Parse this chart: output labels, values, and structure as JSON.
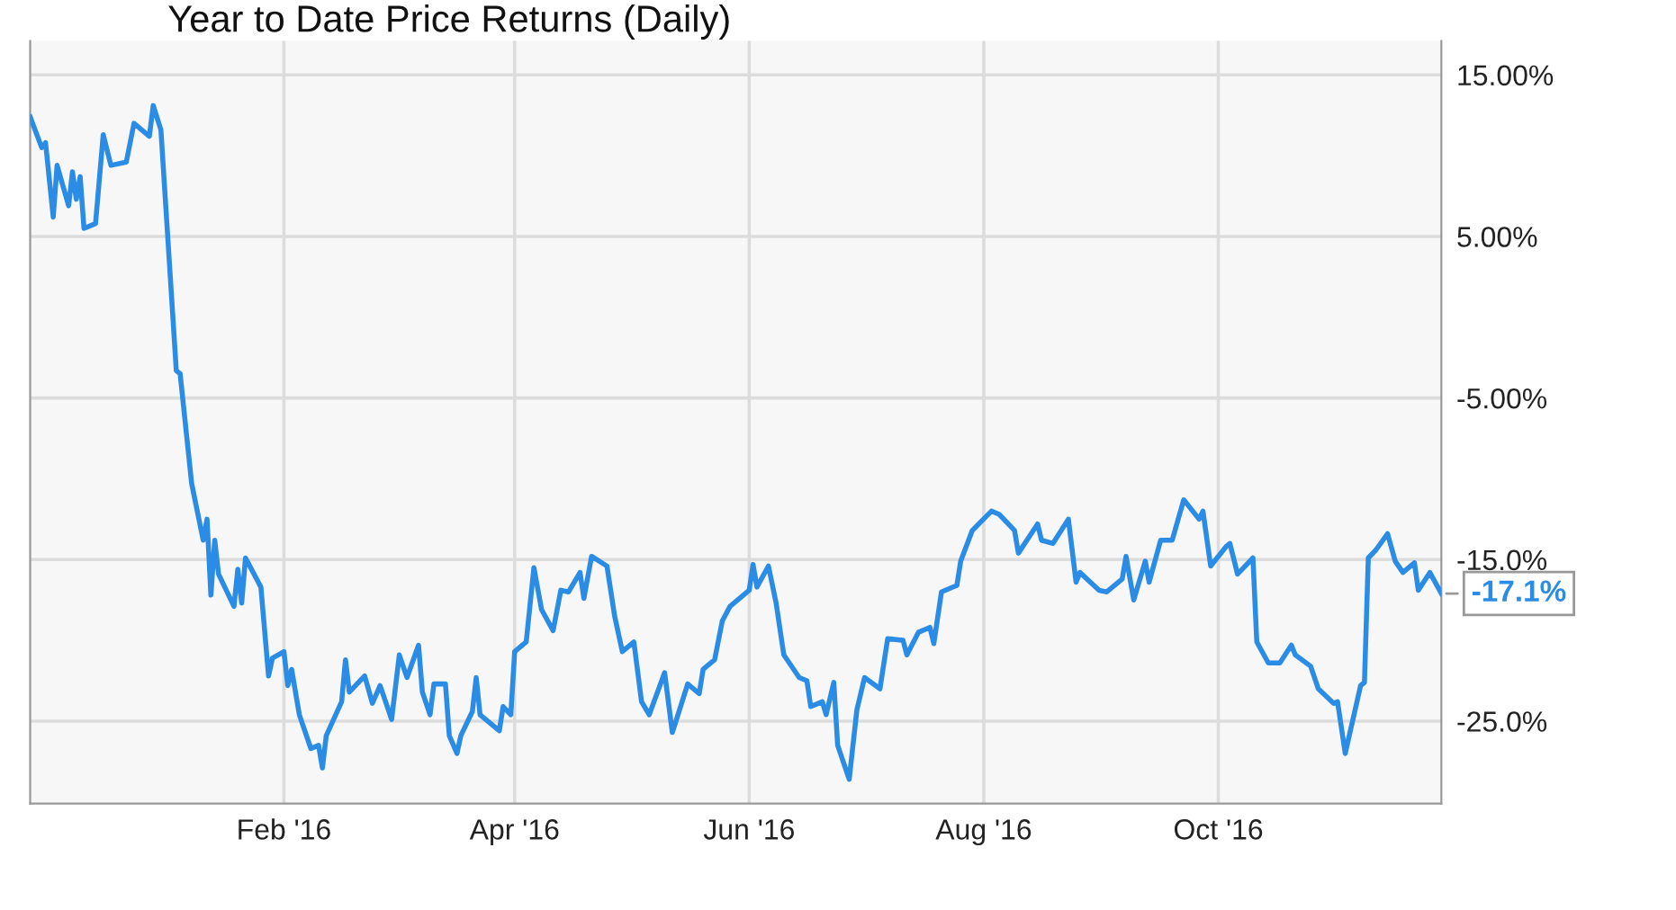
{
  "chart_data": {
    "type": "line",
    "title": "Year to Date Price Returns (Daily)",
    "x": [
      "2015-11-27",
      "2015-11-30",
      "2015-12-01",
      "2015-12-03",
      "2015-12-04",
      "2015-12-07",
      "2015-12-08",
      "2015-12-09",
      "2015-12-10",
      "2015-12-11",
      "2015-12-14",
      "2015-12-16",
      "2015-12-18",
      "2015-12-22",
      "2015-12-24",
      "2015-12-28",
      "2015-12-29",
      "2015-12-31",
      "2016-01-04",
      "2016-01-05",
      "2016-01-08",
      "2016-01-11",
      "2016-01-12",
      "2016-01-13",
      "2016-01-14",
      "2016-01-15",
      "2016-01-19",
      "2016-01-20",
      "2016-01-21",
      "2016-01-22",
      "2016-01-26",
      "2016-01-28",
      "2016-01-29",
      "2016-02-01",
      "2016-02-02",
      "2016-02-03",
      "2016-02-05",
      "2016-02-08",
      "2016-02-10",
      "2016-02-11",
      "2016-02-12",
      "2016-02-16",
      "2016-02-17",
      "2016-02-18",
      "2016-02-22",
      "2016-02-24",
      "2016-02-26",
      "2016-02-29",
      "2016-03-02",
      "2016-03-04",
      "2016-03-07",
      "2016-03-08",
      "2016-03-10",
      "2016-03-11",
      "2016-03-14",
      "2016-03-15",
      "2016-03-17",
      "2016-03-18",
      "2016-03-21",
      "2016-03-22",
      "2016-03-23",
      "2016-03-28",
      "2016-03-29",
      "2016-03-31",
      "2016-04-01",
      "2016-04-04",
      "2016-04-06",
      "2016-04-08",
      "2016-04-11",
      "2016-04-13",
      "2016-04-15",
      "2016-04-18",
      "2016-04-19",
      "2016-04-21",
      "2016-04-25",
      "2016-04-27",
      "2016-04-29",
      "2016-05-02",
      "2016-05-04",
      "2016-05-06",
      "2016-05-10",
      "2016-05-12",
      "2016-05-16",
      "2016-05-19",
      "2016-05-20",
      "2016-05-23",
      "2016-05-25",
      "2016-05-27",
      "2016-06-01",
      "2016-06-02",
      "2016-06-03",
      "2016-06-06",
      "2016-06-08",
      "2016-06-10",
      "2016-06-14",
      "2016-06-16",
      "2016-06-17",
      "2016-06-20",
      "2016-06-21",
      "2016-06-23",
      "2016-06-24",
      "2016-06-27",
      "2016-06-29",
      "2016-07-01",
      "2016-07-05",
      "2016-07-07",
      "2016-07-11",
      "2016-07-12",
      "2016-07-15",
      "2016-07-18",
      "2016-07-19",
      "2016-07-21",
      "2016-07-25",
      "2016-07-26",
      "2016-07-29",
      "2016-08-03",
      "2016-08-05",
      "2016-08-09",
      "2016-08-10",
      "2016-08-15",
      "2016-08-16",
      "2016-08-19",
      "2016-08-23",
      "2016-08-25",
      "2016-08-26",
      "2016-08-31",
      "2016-09-02",
      "2016-09-06",
      "2016-09-07",
      "2016-09-09",
      "2016-09-12",
      "2016-09-13",
      "2016-09-16",
      "2016-09-19",
      "2016-09-22",
      "2016-09-26",
      "2016-09-27",
      "2016-09-29",
      "2016-10-03",
      "2016-10-04",
      "2016-10-06",
      "2016-10-10",
      "2016-10-11",
      "2016-10-14",
      "2016-10-17",
      "2016-10-20",
      "2016-10-21",
      "2016-10-25",
      "2016-10-27",
      "2016-10-31",
      "2016-11-01",
      "2016-11-03",
      "2016-11-07",
      "2016-11-08",
      "2016-11-09",
      "2016-11-11",
      "2016-11-14",
      "2016-11-16",
      "2016-11-18",
      "2016-11-21",
      "2016-11-22",
      "2016-11-25",
      "2016-11-28"
    ],
    "series": [
      {
        "color": "#2b8ce6",
        "values": [
          12.4,
          10.5,
          10.8,
          6.2,
          9.4,
          6.9,
          9.0,
          7.3,
          8.7,
          5.5,
          5.8,
          11.3,
          9.4,
          9.6,
          12.0,
          11.2,
          13.1,
          11.6,
          -3.3,
          -3.5,
          -10.3,
          -13.8,
          -12.5,
          -17.2,
          -13.8,
          -15.9,
          -17.9,
          -15.6,
          -17.7,
          -14.9,
          -16.7,
          -22.2,
          -21.1,
          -20.7,
          -22.8,
          -21.8,
          -24.6,
          -26.7,
          -26.5,
          -27.9,
          -25.9,
          -23.8,
          -21.2,
          -23.2,
          -22.2,
          -23.9,
          -22.8,
          -24.9,
          -20.9,
          -22.3,
          -20.3,
          -23.2,
          -24.6,
          -22.7,
          -22.7,
          -25.9,
          -27.0,
          -25.9,
          -24.4,
          -22.3,
          -24.6,
          -25.6,
          -24.1,
          -24.6,
          -20.7,
          -20.1,
          -15.5,
          -18.1,
          -19.4,
          -16.9,
          -17.0,
          -15.8,
          -17.4,
          -14.8,
          -15.4,
          -18.5,
          -20.7,
          -20.1,
          -23.8,
          -24.6,
          -22.0,
          -25.7,
          -22.7,
          -23.3,
          -21.8,
          -21.2,
          -18.8,
          -17.9,
          -16.9,
          -15.3,
          -16.7,
          -15.4,
          -17.7,
          -20.9,
          -22.3,
          -22.5,
          -24.1,
          -23.8,
          -24.6,
          -22.6,
          -26.5,
          -28.6,
          -24.3,
          -22.3,
          -23.0,
          -19.9,
          -20.0,
          -20.9,
          -19.5,
          -19.2,
          -20.2,
          -17.0,
          -16.6,
          -15.1,
          -13.2,
          -12.0,
          -12.2,
          -13.2,
          -14.6,
          -12.8,
          -13.8,
          -14.0,
          -12.5,
          -16.4,
          -15.8,
          -16.9,
          -17.0,
          -16.2,
          -14.8,
          -17.5,
          -15.1,
          -16.4,
          -13.8,
          -13.8,
          -11.3,
          -12.5,
          -12.0,
          -15.4,
          -14.2,
          -14.0,
          -15.9,
          -14.9,
          -20.1,
          -21.4,
          -21.4,
          -20.3,
          -20.9,
          -21.6,
          -23.0,
          -23.9,
          -23.8,
          -27.0,
          -22.8,
          -22.6,
          -14.9,
          -14.4,
          -13.4,
          -15.1,
          -15.8,
          -15.2,
          -16.9,
          -15.8,
          -17.1
        ]
      }
    ],
    "xlim": [
      "2015-11-27",
      "2016-11-28"
    ],
    "ylim": [
      -30.1,
      17.1
    ],
    "xticks": [
      {
        "value": "2016-02-01",
        "label": "Feb '16"
      },
      {
        "value": "2016-04-01",
        "label": "Apr '16"
      },
      {
        "value": "2016-06-01",
        "label": "Jun '16"
      },
      {
        "value": "2016-08-01",
        "label": "Aug '16"
      },
      {
        "value": "2016-10-01",
        "label": "Oct '16"
      }
    ],
    "yticks": [
      {
        "value": 15,
        "label": "15.00%"
      },
      {
        "value": 5,
        "label": "5.00%"
      },
      {
        "value": -5,
        "label": "-5.00%"
      },
      {
        "value": -15,
        "label": "-15.0%"
      },
      {
        "value": -25,
        "label": "-25.0%"
      }
    ],
    "grid": true,
    "line_style": "solid",
    "annotations": [
      {
        "text": "-17.1%",
        "x": "2016-11-28",
        "y": -17.1
      }
    ]
  }
}
